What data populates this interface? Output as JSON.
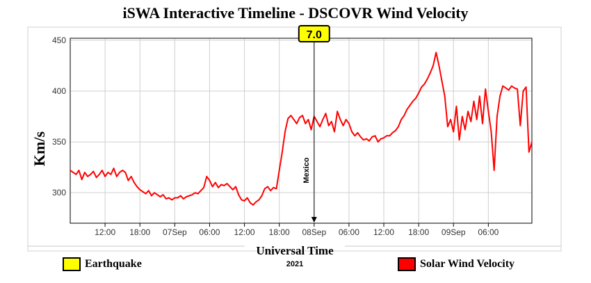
{
  "chart_data": {
    "type": "line",
    "title": "iSWA Interactive Timeline - DSCOVR Wind Velocity",
    "ylabel": "Km/s",
    "xlabel": "Universal Time",
    "xlabel_sub": "2021",
    "ylim": [
      270,
      452
    ],
    "xlim": [
      0,
      79.5
    ],
    "yticks": [
      300,
      350,
      400,
      450
    ],
    "xticks": [
      {
        "x": 6,
        "label": "12:00"
      },
      {
        "x": 12,
        "label": "18:00"
      },
      {
        "x": 18,
        "label": "07Sep"
      },
      {
        "x": 24,
        "label": "06:00"
      },
      {
        "x": 30,
        "label": "12:00"
      },
      {
        "x": 36,
        "label": "18:00"
      },
      {
        "x": 42,
        "label": "08Sep"
      },
      {
        "x": 48,
        "label": "06:00"
      },
      {
        "x": 54,
        "label": "12:00"
      },
      {
        "x": 60,
        "label": "18:00"
      },
      {
        "x": 66,
        "label": "09Sep"
      },
      {
        "x": 72,
        "label": "06:00"
      }
    ],
    "grid": true,
    "series": [
      {
        "name": "Solar Wind Velocity",
        "color": "#ff0000",
        "points": [
          [
            0,
            322
          ],
          [
            0.5,
            320
          ],
          [
            1,
            318
          ],
          [
            1.5,
            322
          ],
          [
            2,
            313
          ],
          [
            2.5,
            320
          ],
          [
            3,
            316
          ],
          [
            3.5,
            318
          ],
          [
            4,
            321
          ],
          [
            4.5,
            315
          ],
          [
            5,
            318
          ],
          [
            5.5,
            322
          ],
          [
            6,
            316
          ],
          [
            6.5,
            320
          ],
          [
            7,
            318
          ],
          [
            7.5,
            324
          ],
          [
            8,
            316
          ],
          [
            8.5,
            320
          ],
          [
            9,
            322
          ],
          [
            9.5,
            320
          ],
          [
            10,
            312
          ],
          [
            10.5,
            316
          ],
          [
            11,
            310
          ],
          [
            11.5,
            306
          ],
          [
            12,
            303
          ],
          [
            12.5,
            301
          ],
          [
            13,
            299
          ],
          [
            13.5,
            302
          ],
          [
            14,
            297
          ],
          [
            14.5,
            300
          ],
          [
            15,
            298
          ],
          [
            15.5,
            296
          ],
          [
            16,
            298
          ],
          [
            16.5,
            294
          ],
          [
            17,
            295
          ],
          [
            17.5,
            293
          ],
          [
            18,
            295
          ],
          [
            18.5,
            295
          ],
          [
            19,
            297
          ],
          [
            19.5,
            294
          ],
          [
            20,
            296
          ],
          [
            20.5,
            297
          ],
          [
            21,
            298
          ],
          [
            21.5,
            300
          ],
          [
            22,
            299
          ],
          [
            22.5,
            302
          ],
          [
            23,
            305
          ],
          [
            23.5,
            316
          ],
          [
            24,
            312
          ],
          [
            24.5,
            306
          ],
          [
            25,
            310
          ],
          [
            25.5,
            305
          ],
          [
            26,
            308
          ],
          [
            26.5,
            307
          ],
          [
            27,
            309
          ],
          [
            27.5,
            306
          ],
          [
            28,
            303
          ],
          [
            28.5,
            306
          ],
          [
            29,
            298
          ],
          [
            29.5,
            293
          ],
          [
            30,
            292
          ],
          [
            30.5,
            295
          ],
          [
            31,
            290
          ],
          [
            31.5,
            288
          ],
          [
            32,
            291
          ],
          [
            32.5,
            293
          ],
          [
            33,
            297
          ],
          [
            33.5,
            304
          ],
          [
            34,
            306
          ],
          [
            34.5,
            302
          ],
          [
            35,
            305
          ],
          [
            35.5,
            304
          ],
          [
            36,
            322
          ],
          [
            36.5,
            340
          ],
          [
            37,
            360
          ],
          [
            37.5,
            373
          ],
          [
            38,
            376
          ],
          [
            38.5,
            372
          ],
          [
            39,
            368
          ],
          [
            39.5,
            374
          ],
          [
            40,
            376
          ],
          [
            40.5,
            368
          ],
          [
            41,
            372
          ],
          [
            41.5,
            362
          ],
          [
            42,
            375
          ],
          [
            42.5,
            370
          ],
          [
            43,
            365
          ],
          [
            43.5,
            372
          ],
          [
            44,
            378
          ],
          [
            44.5,
            366
          ],
          [
            45,
            370
          ],
          [
            45.5,
            360
          ],
          [
            46,
            380
          ],
          [
            46.5,
            372
          ],
          [
            47,
            366
          ],
          [
            47.5,
            372
          ],
          [
            48,
            368
          ],
          [
            48.5,
            360
          ],
          [
            49,
            356
          ],
          [
            49.5,
            359
          ],
          [
            50,
            355
          ],
          [
            50.5,
            352
          ],
          [
            51,
            353
          ],
          [
            51.5,
            351
          ],
          [
            52,
            355
          ],
          [
            52.5,
            356
          ],
          [
            53,
            350
          ],
          [
            53.5,
            353
          ],
          [
            54,
            354
          ],
          [
            54.5,
            356
          ],
          [
            55,
            356
          ],
          [
            55.5,
            359
          ],
          [
            56,
            361
          ],
          [
            56.5,
            365
          ],
          [
            57,
            372
          ],
          [
            57.5,
            376
          ],
          [
            58,
            382
          ],
          [
            58.5,
            386
          ],
          [
            59,
            390
          ],
          [
            59.5,
            393
          ],
          [
            60,
            398
          ],
          [
            60.5,
            404
          ],
          [
            61,
            407
          ],
          [
            61.5,
            412
          ],
          [
            62,
            418
          ],
          [
            62.5,
            425
          ],
          [
            63,
            438
          ],
          [
            63.5,
            425
          ],
          [
            64,
            410
          ],
          [
            64.5,
            395
          ],
          [
            65,
            365
          ],
          [
            65.5,
            372
          ],
          [
            66,
            360
          ],
          [
            66.5,
            385
          ],
          [
            67,
            352
          ],
          [
            67.5,
            375
          ],
          [
            68,
            362
          ],
          [
            68.5,
            380
          ],
          [
            69,
            370
          ],
          [
            69.5,
            390
          ],
          [
            70,
            372
          ],
          [
            70.5,
            395
          ],
          [
            71,
            368
          ],
          [
            71.5,
            402
          ],
          [
            72,
            380
          ],
          [
            72.5,
            360
          ],
          [
            73,
            322
          ],
          [
            73.5,
            375
          ],
          [
            74,
            395
          ],
          [
            74.5,
            405
          ],
          [
            75,
            403
          ],
          [
            75.5,
            401
          ],
          [
            76,
            405
          ],
          [
            76.5,
            403
          ],
          [
            77,
            402
          ],
          [
            77.5,
            366
          ],
          [
            78,
            400
          ],
          [
            78.5,
            404
          ],
          [
            79,
            340
          ],
          [
            79.5,
            350
          ]
        ]
      }
    ],
    "events": [
      {
        "name": "Mexico",
        "x": 42,
        "magnitude": "7.0"
      }
    ],
    "legend": [
      {
        "label": "Earthquake",
        "color": "#ffff00"
      },
      {
        "label": "Solar Wind Velocity",
        "color": "#ff0000"
      }
    ]
  }
}
